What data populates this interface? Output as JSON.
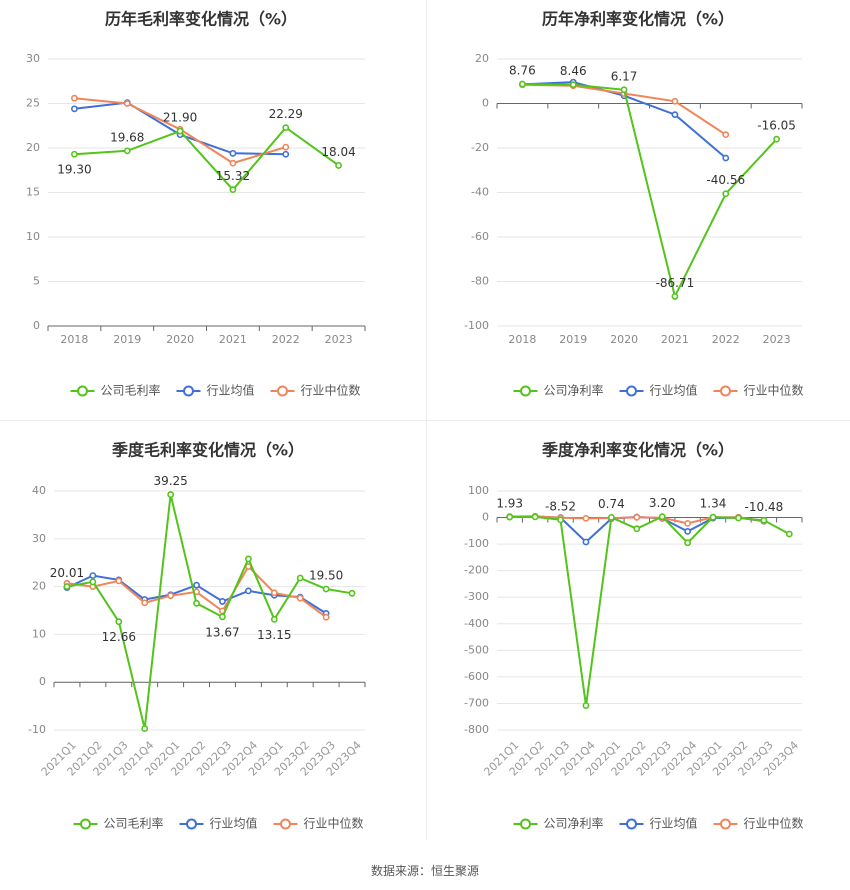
{
  "colors": {
    "company": "#52c41a",
    "mean": "#3f6fd8",
    "median": "#f08559"
  },
  "source_text": "数据来源：恒生聚源",
  "chart_data": [
    {
      "type": "line",
      "title": "历年毛利率变化情况（%）",
      "categories": [
        "2018",
        "2019",
        "2020",
        "2021",
        "2022",
        "2023"
      ],
      "ylim": [
        0,
        30
      ],
      "yticks": [
        0,
        5,
        10,
        15,
        20,
        25,
        30
      ],
      "grid": true,
      "legend_placement": "bottom",
      "series": [
        {
          "name": "公司毛利率",
          "values": [
            19.3,
            19.68,
            21.9,
            15.32,
            22.29,
            18.04
          ]
        },
        {
          "name": "行业均值",
          "values": [
            24.4,
            25.1,
            21.5,
            19.4,
            19.3,
            null
          ]
        },
        {
          "name": "行业中位数",
          "values": [
            25.6,
            25.0,
            22.1,
            18.3,
            20.1,
            null
          ]
        }
      ],
      "data_labels": [
        {
          "text": "19.30",
          "index": 0
        },
        {
          "text": "19.68",
          "index": 1
        },
        {
          "text": "21.90",
          "index": 2
        },
        {
          "text": "15.32",
          "index": 3
        },
        {
          "text": "22.29",
          "index": 4
        },
        {
          "text": "18.04",
          "index": 5
        }
      ]
    },
    {
      "type": "line",
      "title": "历年净利率变化情况（%）",
      "categories": [
        "2018",
        "2019",
        "2020",
        "2021",
        "2022",
        "2023"
      ],
      "ylim": [
        -100,
        20
      ],
      "yticks": [
        -100,
        -80,
        -60,
        -40,
        -20,
        0,
        20
      ],
      "grid": true,
      "legend_placement": "bottom",
      "series": [
        {
          "name": "公司净利率",
          "values": [
            8.76,
            8.46,
            6.17,
            -86.71,
            -40.56,
            -16.05
          ]
        },
        {
          "name": "行业均值",
          "values": [
            8.6,
            9.6,
            3.5,
            -5.0,
            -24.5,
            null
          ]
        },
        {
          "name": "行业中位数",
          "values": [
            8.4,
            8.0,
            4.5,
            1.0,
            -14.0,
            null
          ]
        }
      ],
      "data_labels": [
        {
          "text": "8.76",
          "index": 0
        },
        {
          "text": "8.46",
          "index": 1
        },
        {
          "text": "6.17",
          "index": 2
        },
        {
          "text": "-86.71",
          "index": 3
        },
        {
          "text": "-40.56",
          "index": 4
        },
        {
          "text": "-16.05",
          "index": 5
        }
      ]
    },
    {
      "type": "line",
      "title": "季度毛利率变化情况（%）",
      "categories": [
        "2021Q1",
        "2021Q2",
        "2021Q3",
        "2021Q4",
        "2022Q1",
        "2022Q2",
        "2022Q3",
        "2022Q4",
        "2023Q1",
        "2023Q2",
        "2023Q3",
        "2023Q4"
      ],
      "ylim": [
        -10,
        40
      ],
      "yticks": [
        -10,
        0,
        10,
        20,
        30,
        40
      ],
      "grid": true,
      "legend_placement": "bottom",
      "series": [
        {
          "name": "公司毛利率",
          "values": [
            20.01,
            21.0,
            12.66,
            -9.7,
            39.25,
            16.5,
            13.67,
            25.8,
            13.15,
            21.8,
            19.5,
            18.6
          ]
        },
        {
          "name": "行业均值",
          "values": [
            19.8,
            22.3,
            21.4,
            17.3,
            18.3,
            20.3,
            16.9,
            19.1,
            18.2,
            17.8,
            14.4,
            null
          ]
        },
        {
          "name": "行业中位数",
          "values": [
            20.7,
            20.0,
            21.2,
            16.6,
            18.1,
            18.9,
            14.9,
            24.2,
            18.7,
            17.6,
            13.6,
            null
          ]
        }
      ],
      "data_labels": [
        {
          "text": "20.01",
          "index": 0
        },
        {
          "text": "12.66",
          "index": 2
        },
        {
          "text": "39.25",
          "index": 4
        },
        {
          "text": "13.67",
          "index": 6
        },
        {
          "text": "13.15",
          "index": 8
        },
        {
          "text": "19.50",
          "index": 10
        }
      ]
    },
    {
      "type": "line",
      "title": "季度净利率变化情况（%）",
      "categories": [
        "2021Q1",
        "2021Q2",
        "2021Q3",
        "2021Q4",
        "2022Q1",
        "2022Q2",
        "2022Q3",
        "2022Q4",
        "2023Q1",
        "2023Q2",
        "2023Q3",
        "2023Q4"
      ],
      "ylim": [
        -800,
        100
      ],
      "yticks": [
        -800,
        -700,
        -600,
        -500,
        -400,
        -300,
        -200,
        -100,
        0,
        100
      ],
      "grid": true,
      "legend_placement": "bottom",
      "series": [
        {
          "name": "公司净利率",
          "values": [
            1.93,
            2.5,
            -8.52,
            -708,
            0.74,
            -42,
            3.2,
            -95,
            1.34,
            -1.5,
            -10.48,
            -62
          ]
        },
        {
          "name": "行业均值",
          "values": [
            3,
            4,
            0,
            -92,
            -4,
            2,
            -3,
            -52,
            -2,
            0,
            -14,
            null
          ]
        },
        {
          "name": "行业中位数",
          "values": [
            4,
            5,
            -1,
            -3,
            -2,
            1,
            -1,
            -22,
            1,
            1,
            -13,
            null
          ]
        }
      ],
      "data_labels": [
        {
          "text": "1.93",
          "index": 0
        },
        {
          "text": "-8.52",
          "index": 2
        },
        {
          "text": "0.74",
          "index": 4
        },
        {
          "text": "3.20",
          "index": 6
        },
        {
          "text": "1.34",
          "index": 8
        },
        {
          "text": "-10.48",
          "index": 10
        }
      ]
    }
  ]
}
